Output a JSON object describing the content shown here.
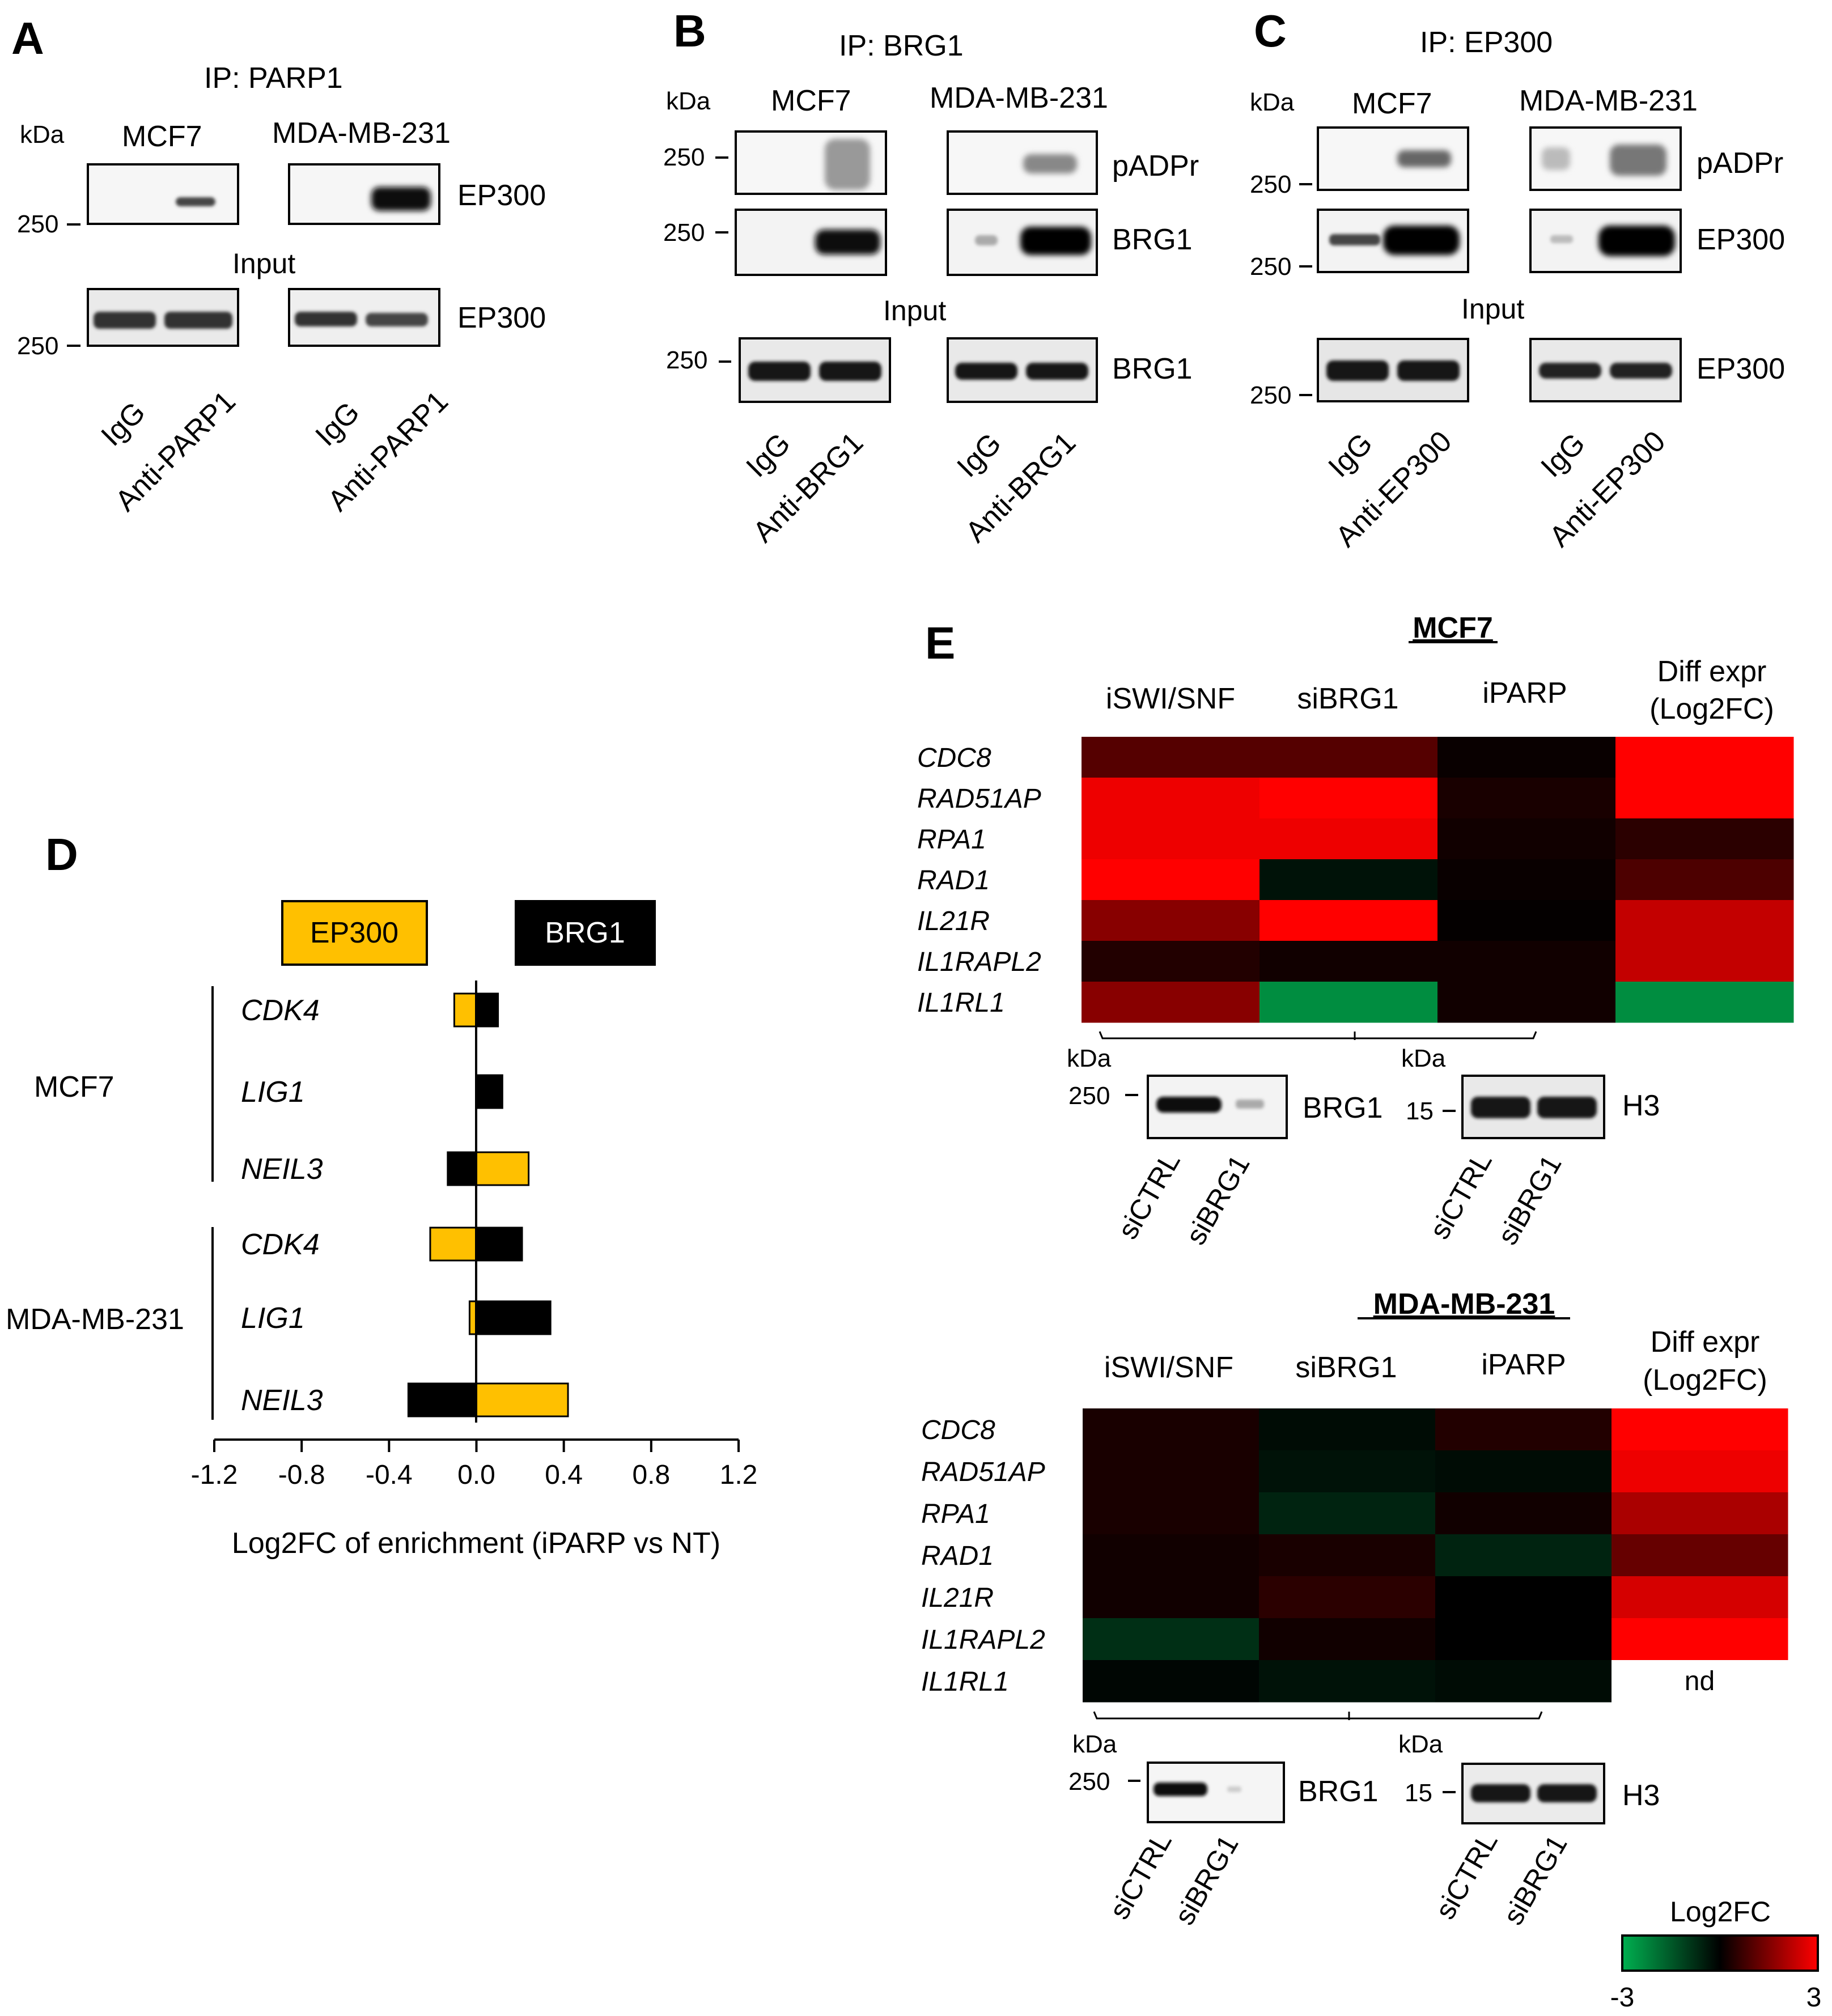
{
  "panel_letters": {
    "a": "A",
    "b": "B",
    "c": "C",
    "d": "D",
    "e": "E"
  },
  "common": {
    "kda": "kDa",
    "input": "Input",
    "igg": "IgG",
    "m250": "250",
    "m15": "15",
    "mcf7": "MCF7",
    "mda": "MDA-MB-231"
  },
  "panel_a": {
    "ip_title": "IP: PARP1",
    "label_ip": "EP300",
    "label_input": "EP300",
    "anti": "Anti-PARP1"
  },
  "panel_b": {
    "ip_title": "IP: BRG1",
    "label_1": "pADPr",
    "label_2": "BRG1",
    "label_input": "BRG1",
    "anti": "Anti-BRG1"
  },
  "panel_c": {
    "ip_title": "IP: EP300",
    "label_1": "pADPr",
    "label_2": "EP300",
    "label_input": "EP300",
    "anti": "Anti-EP300"
  },
  "panel_d": {
    "legend": {
      "ep300": "EP300",
      "brg1": "BRG1"
    },
    "cell_lines": [
      "MCF7",
      "MDA-MB-231"
    ],
    "colors": {
      "ep300": "#FFC000",
      "brg1": "#000000"
    },
    "chart_data": {
      "type": "bar",
      "orientation": "horizontal",
      "xlabel": "Log2FC of enrichment (iPARP vs NT)",
      "xlim": [
        -1.2,
        1.2
      ],
      "xticks": [
        "-1.2",
        "-0.8",
        "-0.4",
        "0.0",
        "0.4",
        "0.8",
        "1.2"
      ],
      "categories": [
        "CDK4",
        "LIG1",
        "NEIL3",
        "CDK4",
        "LIG1",
        "NEIL3"
      ],
      "groups": [
        "MCF7",
        "MCF7",
        "MCF7",
        "MDA-MB-231",
        "MDA-MB-231",
        "MDA-MB-231"
      ],
      "series": [
        {
          "name": "EP300",
          "values": [
            -0.1,
            0.05,
            0.24,
            -0.21,
            -0.03,
            0.42
          ]
        },
        {
          "name": "BRG1",
          "values": [
            0.1,
            0.12,
            -0.13,
            0.21,
            0.34,
            -0.31
          ]
        }
      ]
    }
  },
  "panel_e": {
    "columns": [
      "iSWI/SNF",
      "siBRG1",
      "iPARP",
      "Diff expr",
      "(Log2FC)"
    ],
    "genes": [
      "CDC8",
      "RAD51AP",
      "RPA1",
      "RAD1",
      "IL21R",
      "IL1RAPL2",
      "IL1RL1"
    ],
    "nd": "nd",
    "siCTRL": "siCTRL",
    "siBRG1": "siBRG1",
    "brg1": "BRG1",
    "h3": "H3",
    "colorbar": {
      "title": "Log2FC",
      "min": "-3",
      "max": "3"
    },
    "chart_data": [
      {
        "type": "heatmap",
        "title": "MCF7",
        "columns": [
          "iSWI/SNF",
          "siBRG1",
          "iPARP",
          "Diff expr (Log2FC)"
        ],
        "rows": [
          "CDC8",
          "RAD51AP",
          "RPA1",
          "RAD1",
          "IL21R",
          "IL1RAPL2",
          "IL1RL1"
        ],
        "scale": [
          -3,
          3
        ],
        "values": [
          [
            1.0,
            1.0,
            0.1,
            3.0
          ],
          [
            2.8,
            3.0,
            0.3,
            3.0
          ],
          [
            2.8,
            2.8,
            0.2,
            0.5
          ],
          [
            3.0,
            -0.3,
            0.1,
            0.9
          ],
          [
            1.6,
            3.0,
            0.05,
            2.3
          ],
          [
            0.4,
            0.2,
            0.2,
            2.3
          ],
          [
            1.6,
            -2.4,
            0.2,
            -2.4
          ]
        ]
      },
      {
        "type": "heatmap",
        "title": "MDA-MB-231",
        "columns": [
          "iSWI/SNF",
          "siBRG1",
          "iPARP",
          "Diff expr (Log2FC)"
        ],
        "rows": [
          "CDC8",
          "RAD51AP",
          "RPA1",
          "RAD1",
          "IL21R",
          "IL1RAPL2",
          "IL1RL1"
        ],
        "scale": [
          -3,
          3
        ],
        "values": [
          [
            0.3,
            -0.2,
            0.4,
            3.0
          ],
          [
            0.3,
            -0.3,
            -0.2,
            2.8
          ],
          [
            0.3,
            -0.6,
            0.2,
            2.0
          ],
          [
            0.2,
            0.3,
            -0.6,
            1.2
          ],
          [
            0.2,
            0.5,
            0.0,
            2.5
          ],
          [
            -0.8,
            0.2,
            0.0,
            3.0
          ],
          [
            -0.1,
            -0.3,
            -0.2,
            null
          ]
        ]
      }
    ]
  }
}
